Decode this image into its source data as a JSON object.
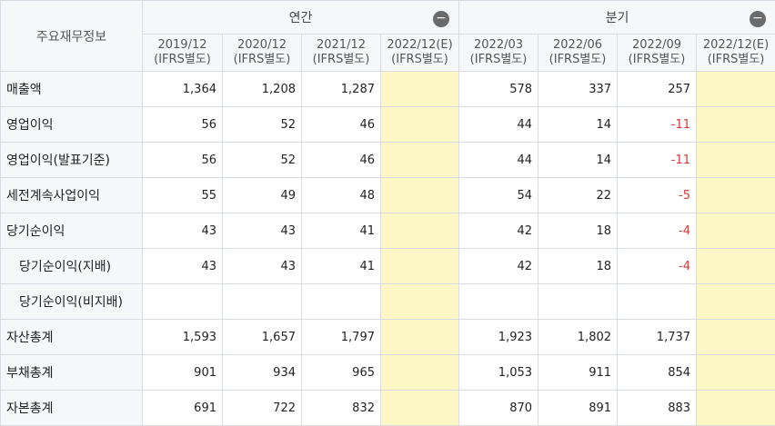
{
  "header": {
    "corner_label": "주요재무정보",
    "annual_label": "연간",
    "quarterly_label": "분기",
    "collapse_glyph": "−"
  },
  "periods": {
    "annual": [
      {
        "date": "2019/12",
        "basis": "(IFRS별도)"
      },
      {
        "date": "2020/12",
        "basis": "(IFRS별도)"
      },
      {
        "date": "2021/12",
        "basis": "(IFRS별도)"
      },
      {
        "date": "2022/12(E)",
        "basis": "(IFRS별도)"
      }
    ],
    "quarterly": [
      {
        "date": "2022/03",
        "basis": "(IFRS별도)"
      },
      {
        "date": "2022/06",
        "basis": "(IFRS별도)"
      },
      {
        "date": "2022/09",
        "basis": "(IFRS별도)"
      },
      {
        "date": "2022/12(E)",
        "basis": "(IFRS별도)"
      }
    ]
  },
  "rows": [
    {
      "label": "매출액",
      "annual": [
        "1,364",
        "1,208",
        "1,287",
        ""
      ],
      "quarterly": [
        "578",
        "337",
        "257",
        ""
      ]
    },
    {
      "label": "영업이익",
      "annual": [
        "56",
        "52",
        "46",
        ""
      ],
      "quarterly": [
        "44",
        "14",
        "-11",
        ""
      ]
    },
    {
      "label": "영업이익(발표기준)",
      "annual": [
        "56",
        "52",
        "46",
        ""
      ],
      "quarterly": [
        "44",
        "14",
        "-11",
        ""
      ]
    },
    {
      "label": "세전계속사업이익",
      "annual": [
        "55",
        "49",
        "48",
        ""
      ],
      "quarterly": [
        "54",
        "22",
        "-5",
        ""
      ]
    },
    {
      "label": "당기순이익",
      "annual": [
        "43",
        "43",
        "41",
        ""
      ],
      "quarterly": [
        "42",
        "18",
        "-4",
        ""
      ]
    },
    {
      "label": "당기순이익(지배)",
      "annual": [
        "43",
        "43",
        "41",
        ""
      ],
      "quarterly": [
        "42",
        "18",
        "-4",
        ""
      ]
    },
    {
      "label": "당기순이익(비지배)",
      "annual": [
        "",
        "",
        "",
        ""
      ],
      "quarterly": [
        "",
        "",
        "",
        ""
      ]
    },
    {
      "label": "자산총계",
      "annual": [
        "1,593",
        "1,657",
        "1,797",
        ""
      ],
      "quarterly": [
        "1,923",
        "1,802",
        "1,737",
        ""
      ]
    },
    {
      "label": "부채총계",
      "annual": [
        "901",
        "934",
        "965",
        ""
      ],
      "quarterly": [
        "1,053",
        "911",
        "854",
        ""
      ]
    },
    {
      "label": "자본총계",
      "annual": [
        "691",
        "722",
        "832",
        ""
      ],
      "quarterly": [
        "870",
        "891",
        "883",
        ""
      ]
    }
  ],
  "colors": {
    "negative": "#d63a3a",
    "estimate_bg": "#fdf7c5",
    "header_bg": "#f6f7f9"
  }
}
